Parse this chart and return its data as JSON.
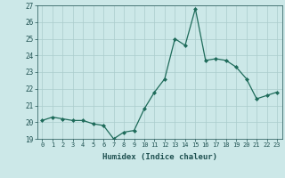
{
  "x": [
    0,
    1,
    2,
    3,
    4,
    5,
    6,
    7,
    8,
    9,
    10,
    11,
    12,
    13,
    14,
    15,
    16,
    17,
    18,
    19,
    20,
    21,
    22,
    23
  ],
  "y": [
    20.1,
    20.3,
    20.2,
    20.1,
    20.1,
    19.9,
    19.8,
    19.0,
    19.4,
    19.5,
    20.8,
    21.8,
    22.6,
    25.0,
    24.6,
    26.8,
    23.7,
    23.8,
    23.7,
    23.3,
    22.6,
    21.4,
    21.6,
    21.8
  ],
  "xlabel": "Humidex (Indice chaleur)",
  "ylim": [
    19,
    27
  ],
  "yticks": [
    19,
    20,
    21,
    22,
    23,
    24,
    25,
    26,
    27
  ],
  "xticks": [
    0,
    1,
    2,
    3,
    4,
    5,
    6,
    7,
    8,
    9,
    10,
    11,
    12,
    13,
    14,
    15,
    16,
    17,
    18,
    19,
    20,
    21,
    22,
    23
  ],
  "line_color": "#1e6b5a",
  "marker_color": "#1e6b5a",
  "bg_color": "#cce8e8",
  "grid_color": "#aacccc",
  "axes_bg": "#cce8e8",
  "tick_color": "#1e5050",
  "label_color": "#1e5050"
}
